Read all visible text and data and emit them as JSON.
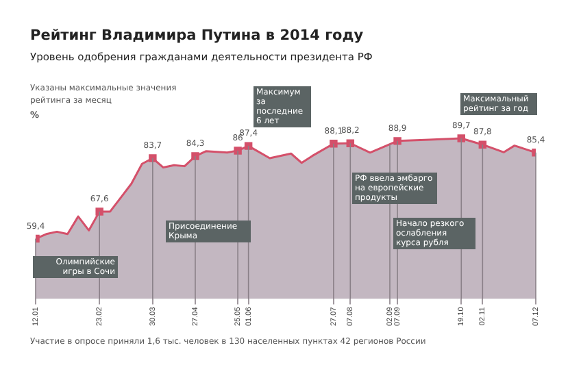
{
  "chart_data": {
    "type": "area",
    "title": "Рейтинг Владимира Путина в 2014 году",
    "subtitle": "Уровень одобрения гражданами деятельности президента РФ",
    "ylabel": "%",
    "x": [
      "2014-01-12",
      "2014-01-19",
      "2014-01-26",
      "2014-02-02",
      "2014-02-09",
      "2014-02-16",
      "2014-02-23",
      "2014-03-02",
      "2014-03-09",
      "2014-03-16",
      "2014-03-23",
      "2014-03-30",
      "2014-04-06",
      "2014-04-13",
      "2014-04-20",
      "2014-04-27",
      "2014-05-04",
      "2014-05-18",
      "2014-05-25",
      "2014-06-01",
      "2014-06-15",
      "2014-06-29",
      "2014-07-06",
      "2014-07-13",
      "2014-07-27",
      "2014-08-07",
      "2014-08-20",
      "2014-09-07",
      "2014-09-28",
      "2014-10-19",
      "2014-11-02",
      "2014-11-16",
      "2014-11-23",
      "2014-12-07"
    ],
    "series": [
      {
        "color": "#d4506a",
        "values": [
          59.4,
          60.8,
          61.5,
          60.8,
          66.1,
          61.9,
          67.6,
          67.6,
          71.8,
          76.0,
          82.0,
          83.7,
          80.9,
          81.6,
          81.3,
          84.3,
          85.8,
          85.4,
          86,
          87.4,
          83.7,
          85.1,
          82.3,
          84.4,
          88.1,
          88.2,
          85.4,
          88.9,
          89.3,
          89.7,
          87.8,
          85.5,
          87.5,
          85.4
        ],
        "value_labels": [
          "59,4",
          null,
          null,
          null,
          null,
          null,
          "67,6",
          null,
          null,
          null,
          null,
          "83,7",
          null,
          null,
          null,
          "84,3",
          null,
          null,
          "86",
          "87,4",
          null,
          null,
          null,
          null,
          "88,1",
          "88,2",
          null,
          "88,9",
          null,
          "89,7",
          "87,8",
          null,
          null,
          "85,4"
        ]
      }
    ],
    "xlim": [
      "2014-01-12",
      "2014-12-07"
    ],
    "xticks": [
      {
        "value": "2014-01-12",
        "label": "12.01"
      },
      {
        "value": "2014-02-23",
        "label": "23.02"
      },
      {
        "value": "2014-03-30",
        "label": "30.03"
      },
      {
        "value": "2014-04-27",
        "label": "27.04"
      },
      {
        "value": "2014-05-25",
        "label": "25.05"
      },
      {
        "value": "2014-06-01",
        "label": "01.06"
      },
      {
        "value": "2014-07-27",
        "label": "27.07"
      },
      {
        "value": "2014-08-07",
        "label": "07.08"
      },
      {
        "value": "2014-09-02",
        "label": "02.09"
      },
      {
        "value": "2014-09-07",
        "label": "07.09"
      },
      {
        "value": "2014-10-19",
        "label": "19.10"
      },
      {
        "value": "2014-11-02",
        "label": "02.11"
      },
      {
        "value": "2014-12-07",
        "label": "07.12"
      }
    ],
    "legend": false,
    "tick_labels": "x",
    "annotations": [
      "Указаны максимальные значения рейтинга за месяц",
      "Олимпийские игры в Сочи",
      "Присоединение Крыма",
      "Максимум за последние 6 лет",
      "Максимальный рейтинг за год",
      "РФ ввела эмбарго на европейские продукты",
      "Начало резкого ослабления курса рубля",
      "Участие в опросе приняли 1,6 тыс. человек в 130 населенных пунктах 42 регионов России"
    ]
  }
}
